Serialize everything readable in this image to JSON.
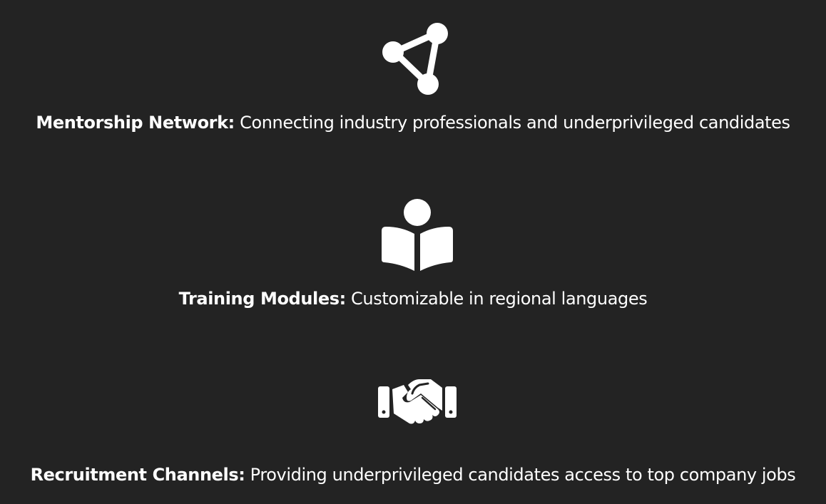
{
  "colors": {
    "background": "#232323",
    "foreground": "#ffffff"
  },
  "features": [
    {
      "icon": "network-nodes-icon",
      "title": "Mentorship Network:",
      "description": "Connecting industry professionals and underprivileged candidates"
    },
    {
      "icon": "reader-book-icon",
      "title": "Training Modules:",
      "description": "Customizable in regional languages"
    },
    {
      "icon": "handshake-icon",
      "title": "Recruitment Channels:",
      "description": "Providing underprivileged candidates access to top company jobs"
    }
  ]
}
